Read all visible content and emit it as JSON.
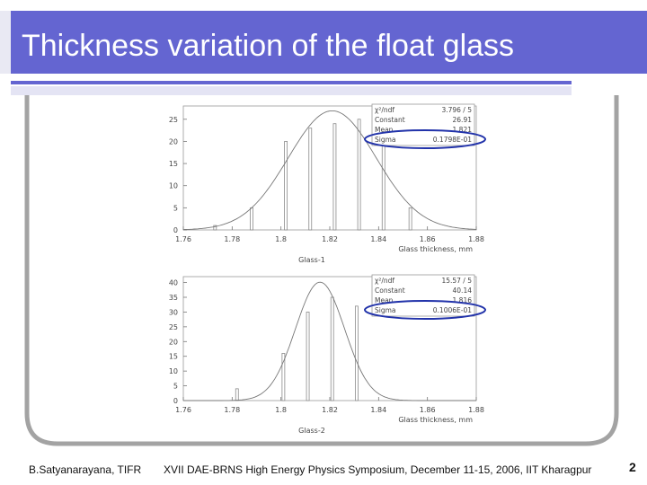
{
  "slide": {
    "title": "Thickness variation of the float glass",
    "footer_left": "B.Satyanarayana, TIFR",
    "footer_center": "XVII DAE-BRNS High Energy Physics Symposium, December 11-15, 2006, IIT Kharagpur",
    "slide_number": "2",
    "accent_color": "#6465d1"
  },
  "chart_data": [
    {
      "type": "bar",
      "title": "Glass-1",
      "xlabel": "Glass thickness, mm",
      "xlim": [
        1.76,
        1.88
      ],
      "ylim": [
        0,
        28
      ],
      "x_ticks": [
        "1.76",
        "1.78",
        "1.8",
        "1.82",
        "1.84",
        "1.86",
        "1.88"
      ],
      "y_ticks": [
        "0",
        "5",
        "10",
        "15",
        "20",
        "25"
      ],
      "x": [
        1.773,
        1.788,
        1.802,
        1.812,
        1.822,
        1.832,
        1.842,
        1.853
      ],
      "values": [
        1,
        5,
        20,
        23,
        24,
        25,
        20,
        5
      ],
      "fit": {
        "type": "gaussian",
        "constant": 26.91,
        "mean": 1.821,
        "sigma": 0.01798
      },
      "stats": [
        {
          "label": "χ²/ndf",
          "value": "3.796   /   5"
        },
        {
          "label": "Constant",
          "value": "26.91"
        },
        {
          "label": "Mean",
          "value": "1.821"
        },
        {
          "label": "Sigma",
          "value": "0.1798E-01"
        }
      ]
    },
    {
      "type": "bar",
      "title": "Glass-2",
      "xlabel": "Glass thickness, mm",
      "xlim": [
        1.76,
        1.88
      ],
      "ylim": [
        0,
        42
      ],
      "x_ticks": [
        "1.76",
        "1.78",
        "1.8",
        "1.82",
        "1.84",
        "1.86",
        "1.88"
      ],
      "y_ticks": [
        "0",
        "5",
        "10",
        "15",
        "20",
        "25",
        "30",
        "35",
        "40"
      ],
      "x": [
        1.782,
        1.801,
        1.811,
        1.821,
        1.831
      ],
      "values": [
        4,
        16,
        30,
        35,
        32
      ],
      "fit": {
        "type": "gaussian",
        "constant": 40.14,
        "mean": 1.816,
        "sigma": 0.01006
      },
      "stats": [
        {
          "label": "χ²/ndf",
          "value": "15.57   /   5"
        },
        {
          "label": "Constant",
          "value": "40.14"
        },
        {
          "label": "Mean",
          "value": "1.816"
        },
        {
          "label": "Sigma",
          "value": "0.1006E-01"
        }
      ]
    }
  ]
}
